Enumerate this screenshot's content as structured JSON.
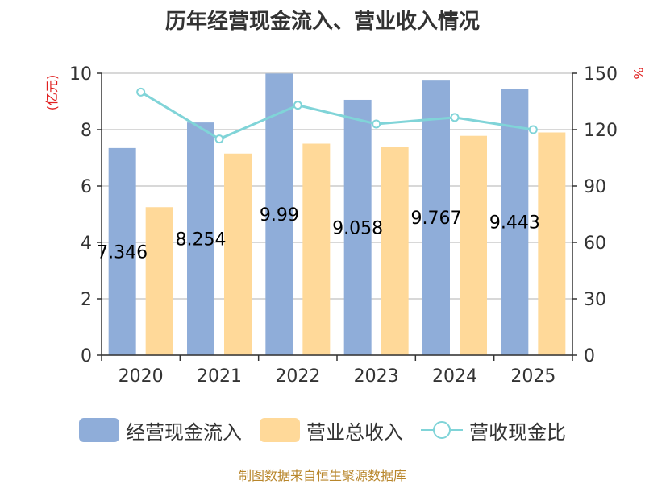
{
  "chart_data": {
    "type": "bar",
    "title": "历年经营现金流入、营业收入情况",
    "categories": [
      "2020",
      "2021",
      "2022",
      "2023",
      "2024",
      "2025"
    ],
    "left_axis": {
      "label": "(亿元)",
      "range": [
        0,
        10
      ],
      "ticks": [
        "0",
        "2",
        "4",
        "6",
        "8",
        "10"
      ]
    },
    "right_axis": {
      "label": "%",
      "range": [
        0,
        150
      ],
      "ticks": [
        "0",
        "30",
        "60",
        "90",
        "120",
        "150"
      ]
    },
    "series": [
      {
        "name": "经营现金流入",
        "type": "bar",
        "axis": "left",
        "color": "#8fadd9",
        "values": [
          7.346,
          8.254,
          9.99,
          9.058,
          9.767,
          9.443
        ],
        "data_labels": [
          "7.346",
          "8.254",
          "9.99",
          "9.058",
          "9.767",
          "9.443"
        ]
      },
      {
        "name": "营业总收入",
        "type": "bar",
        "axis": "left",
        "color": "#ffd999",
        "values": [
          5.25,
          7.15,
          7.5,
          7.38,
          7.78,
          7.9
        ]
      },
      {
        "name": "营收现金比",
        "type": "line",
        "axis": "right",
        "color": "#80d4d8",
        "values": [
          140,
          115,
          133,
          123,
          126.5,
          120
        ]
      }
    ],
    "grid": true,
    "legend_position": "bottom",
    "source_note": "制图数据来自恒生聚源数据库"
  }
}
